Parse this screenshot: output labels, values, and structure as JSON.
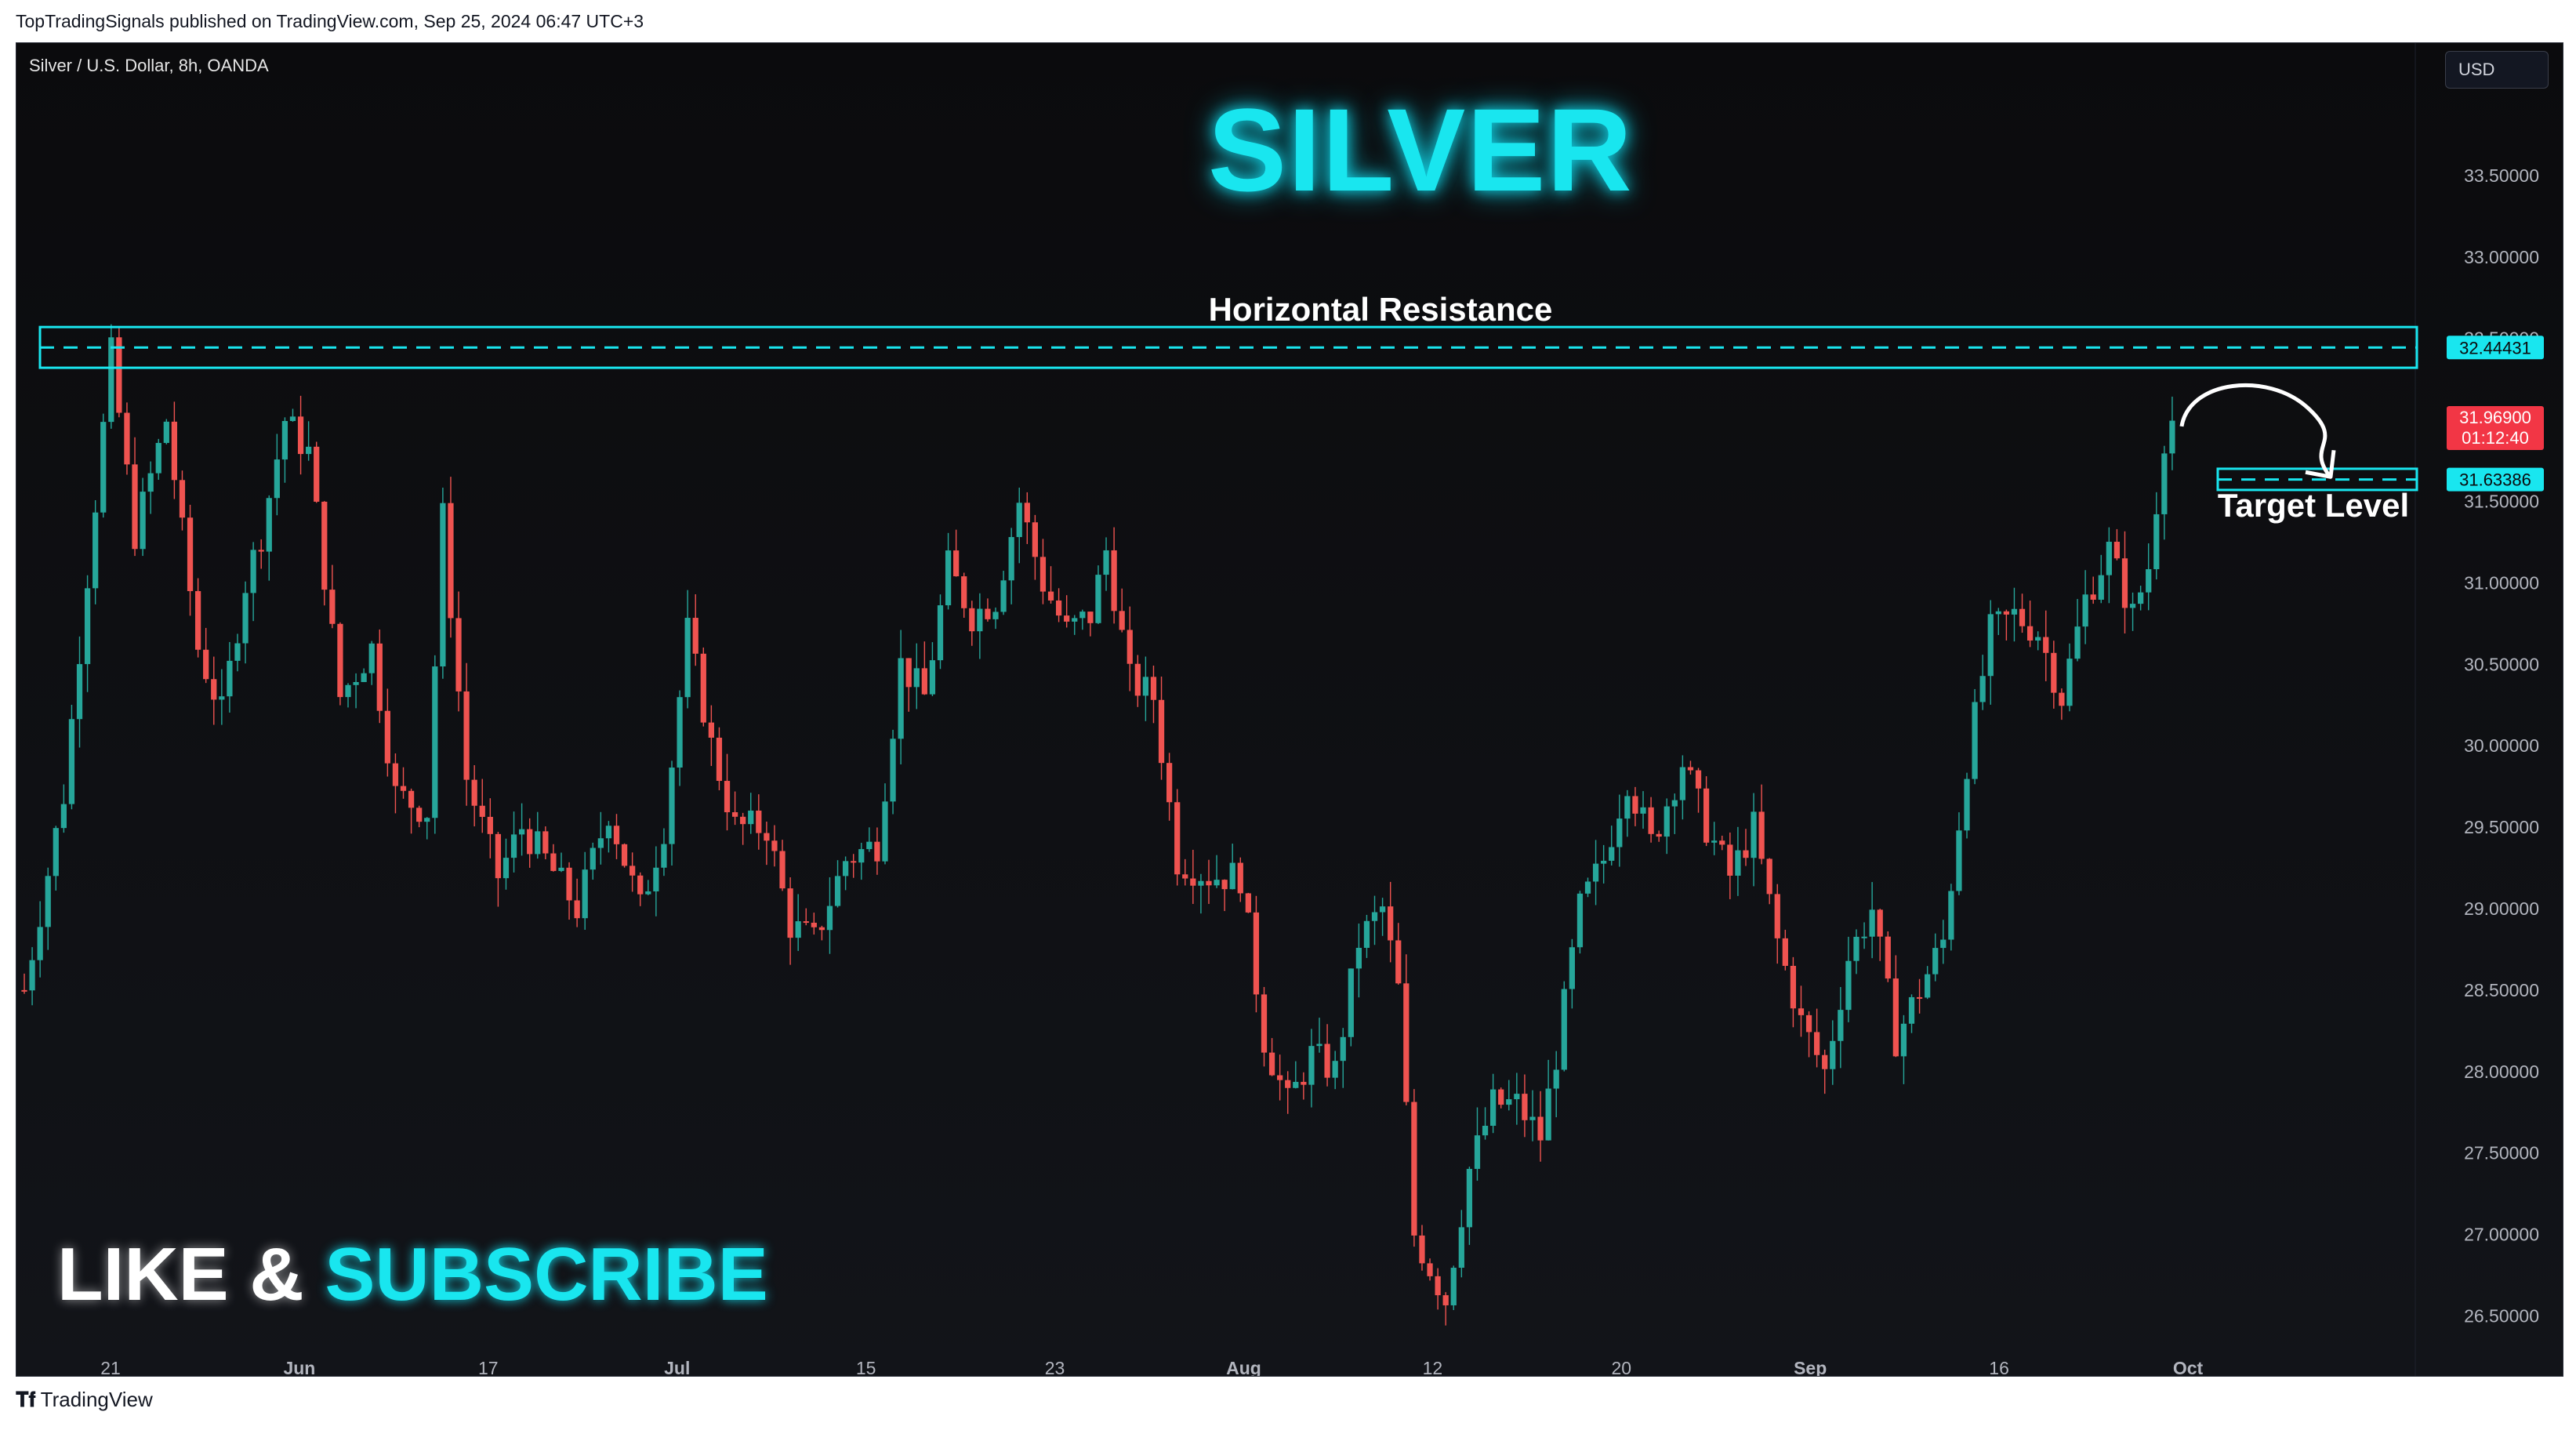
{
  "publish_line": "TopTradingSignals published on TradingView.com, Sep 25, 2024 06:47 UTC+3",
  "symbol_label": "Silver / U.S. Dollar, 8h, OANDA",
  "currency_button": "USD",
  "title": "SILVER",
  "cta": {
    "like": "LIKE &",
    "subscribe": "SUBSCRIBE"
  },
  "footer_brand": "TradingView",
  "colors": {
    "up": "#26a69a",
    "down": "#ef5350",
    "accent": "#19e6ef",
    "price_tag": "#f23645"
  },
  "chart_data": {
    "type": "candlestick",
    "timeframe": "8h",
    "y_axis": {
      "ylim": [
        26.3,
        34.0
      ],
      "ticks": [
        "33.50000",
        "33.00000",
        "32.50000",
        "32.00000",
        "31.50000",
        "31.00000",
        "30.50000",
        "30.00000",
        "29.50000",
        "29.00000",
        "28.50000",
        "28.00000",
        "27.50000",
        "27.00000",
        "26.50000"
      ]
    },
    "x_axis": {
      "ticks": [
        "21",
        "Jun",
        "17",
        "Jul",
        "15",
        "23",
        "Aug",
        "12",
        "20",
        "Sep",
        "16",
        "Oct"
      ]
    },
    "close_path": [
      [
        0,
        28.5
      ],
      [
        5,
        29.7
      ],
      [
        9,
        31.5
      ],
      [
        11,
        32.4
      ],
      [
        14,
        31.3
      ],
      [
        18,
        32.0
      ],
      [
        22,
        30.6
      ],
      [
        25,
        30.2
      ],
      [
        28,
        31.0
      ],
      [
        30,
        31.3
      ],
      [
        33,
        32.0
      ],
      [
        36,
        31.8
      ],
      [
        40,
        30.3
      ],
      [
        44,
        30.6
      ],
      [
        47,
        29.7
      ],
      [
        51,
        29.6
      ],
      [
        53,
        31.4
      ],
      [
        56,
        29.8
      ],
      [
        60,
        29.2
      ],
      [
        63,
        29.5
      ],
      [
        66,
        29.3
      ],
      [
        70,
        29.0
      ],
      [
        74,
        29.6
      ],
      [
        78,
        29.0
      ],
      [
        81,
        29.5
      ],
      [
        84,
        30.7
      ],
      [
        87,
        30.0
      ],
      [
        90,
        29.5
      ],
      [
        94,
        29.5
      ],
      [
        97,
        28.9
      ],
      [
        100,
        28.8
      ],
      [
        104,
        29.3
      ],
      [
        108,
        29.4
      ],
      [
        111,
        30.5
      ],
      [
        114,
        30.3
      ],
      [
        117,
        31.1
      ],
      [
        120,
        30.8
      ],
      [
        123,
        30.9
      ],
      [
        126,
        31.5
      ],
      [
        129,
        31.0
      ],
      [
        132,
        30.7
      ],
      [
        135,
        30.8
      ],
      [
        137,
        31.2
      ],
      [
        140,
        30.4
      ],
      [
        143,
        30.3
      ],
      [
        146,
        29.3
      ],
      [
        150,
        29.2
      ],
      [
        154,
        29.2
      ],
      [
        157,
        28.2
      ],
      [
        160,
        27.8
      ],
      [
        163,
        28.1
      ],
      [
        166,
        28.0
      ],
      [
        169,
        28.8
      ],
      [
        172,
        29.0
      ],
      [
        174,
        28.5
      ],
      [
        176,
        27.0
      ],
      [
        178,
        26.8
      ],
      [
        180,
        26.6
      ],
      [
        183,
        27.4
      ],
      [
        186,
        27.8
      ],
      [
        189,
        27.8
      ],
      [
        192,
        27.6
      ],
      [
        194,
        28.1
      ],
      [
        197,
        29.0
      ],
      [
        200,
        29.3
      ],
      [
        203,
        29.8
      ],
      [
        206,
        29.4
      ],
      [
        210,
        29.9
      ],
      [
        213,
        29.5
      ],
      [
        216,
        29.2
      ],
      [
        219,
        29.5
      ],
      [
        222,
        28.8
      ],
      [
        225,
        28.3
      ],
      [
        228,
        28.0
      ],
      [
        231,
        28.7
      ],
      [
        234,
        29.0
      ],
      [
        237,
        28.2
      ],
      [
        240,
        28.5
      ],
      [
        243,
        28.8
      ],
      [
        246,
        29.9
      ],
      [
        249,
        30.7
      ],
      [
        252,
        30.8
      ],
      [
        255,
        30.7
      ],
      [
        258,
        30.3
      ],
      [
        261,
        30.9
      ],
      [
        264,
        31.2
      ],
      [
        267,
        30.8
      ],
      [
        269,
        31.1
      ],
      [
        271,
        31.9
      ],
      [
        272,
        32.0
      ]
    ],
    "levels": [
      {
        "label": "Horizontal Resistance",
        "price": "32.44431",
        "value": 32.44431,
        "zone": [
          32.32,
          32.57
        ]
      },
      {
        "label": "Target Level",
        "price": "31.63386",
        "value": 31.63386,
        "zone": [
          31.57,
          31.7
        ]
      }
    ],
    "current_price": {
      "value": 31.969,
      "label": "31.96900",
      "countdown": "01:12:40"
    },
    "projection": {
      "from": 31.96,
      "peak": 32.15,
      "to": 31.66,
      "direction": "down"
    },
    "grid": false
  }
}
